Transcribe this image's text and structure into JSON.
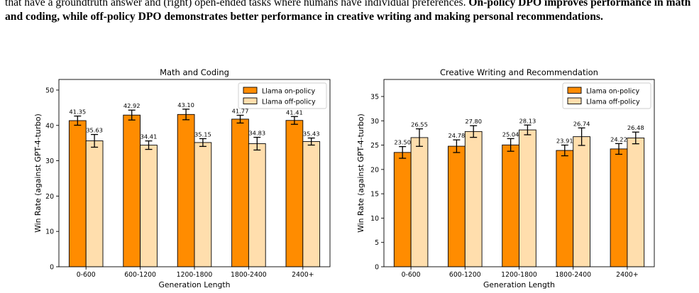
{
  "caption": {
    "line1": "that have a groundtruth answer and (right) open-ended tasks where humans have individual preferences.",
    "bold": "On-policy DPO improves performance in math and coding, while off-policy DPO demonstrates better performance in creative writing and making personal recommendations."
  },
  "colors": {
    "on_policy": "#ff8c00",
    "off_policy": "#ffdead",
    "edge": "#000000"
  },
  "chart_data": [
    {
      "type": "bar",
      "title": "Math and Coding",
      "xlabel": "Generation Length",
      "ylabel": "Win Rate (against GPT-4-turbo)",
      "categories": [
        "0-600",
        "600-1200",
        "1200-1800",
        "1800-2400",
        "2400+"
      ],
      "series": [
        {
          "name": "Llama on-policy",
          "values": [
            41.35,
            42.92,
            43.1,
            41.77,
            41.41
          ],
          "labels": [
            "41.35",
            "42.92",
            "43.10",
            "41.77",
            "41.41"
          ],
          "errors": [
            1.3,
            1.4,
            1.5,
            1.1,
            1.1
          ]
        },
        {
          "name": "Llama off-policy",
          "values": [
            35.63,
            34.41,
            35.15,
            34.83,
            35.43
          ],
          "labels": [
            "35.63",
            "34.41",
            "35.15",
            "34.83",
            "35.43"
          ],
          "errors": [
            1.8,
            1.2,
            1.1,
            1.8,
            1.0
          ]
        }
      ],
      "ylim": [
        0,
        53
      ],
      "yticks": [
        0,
        10,
        20,
        30,
        40,
        50
      ],
      "legend": "top-right",
      "grid": false
    },
    {
      "type": "bar",
      "title": "Creative Writing and Recommendation",
      "xlabel": "Generation Length",
      "ylabel": "Win Rate (against GPT-4-turbo)",
      "categories": [
        "0-600",
        "600-1200",
        "1200-1800",
        "1800-2400",
        "2400+"
      ],
      "series": [
        {
          "name": "Llama on-policy",
          "values": [
            23.5,
            24.78,
            25.04,
            23.91,
            24.22
          ],
          "labels": [
            "23.50",
            "24.78",
            "25.04",
            "23.91",
            "24.22"
          ],
          "errors": [
            1.2,
            1.3,
            1.3,
            1.1,
            1.1
          ]
        },
        {
          "name": "Llama off-policy",
          "values": [
            26.55,
            27.8,
            28.13,
            26.74,
            26.48
          ],
          "labels": [
            "26.55",
            "27.80",
            "28.13",
            "26.74",
            "26.48"
          ],
          "errors": [
            1.8,
            1.2,
            1.0,
            1.8,
            1.2
          ]
        }
      ],
      "ylim": [
        0,
        38.5
      ],
      "yticks": [
        0,
        5,
        10,
        15,
        20,
        25,
        30,
        35
      ],
      "legend": "top-right",
      "grid": false
    }
  ]
}
